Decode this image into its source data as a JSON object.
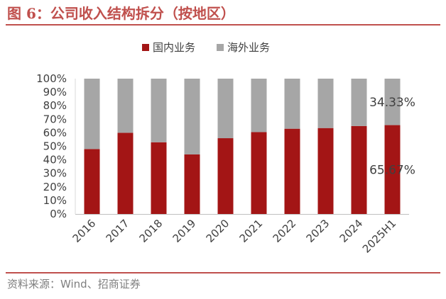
{
  "figure": {
    "title": "图 6：公司收入结构拆分（按地区）",
    "source": "资料来源：Wind、招商证券"
  },
  "chart_data": {
    "type": "bar",
    "stacked": true,
    "percent": true,
    "categories": [
      "2016",
      "2017",
      "2018",
      "2019",
      "2020",
      "2021",
      "2022",
      "2023",
      "2024",
      "2025H1"
    ],
    "series": [
      {
        "name": "国内业务",
        "color": "#A31515",
        "values": [
          48,
          60,
          53,
          44,
          56,
          60.5,
          63,
          63.5,
          65,
          65.67
        ]
      },
      {
        "name": "海外业务",
        "color": "#A6A6A6",
        "values": [
          52,
          40,
          47,
          56,
          44,
          39.5,
          37,
          36.5,
          35,
          34.33
        ]
      }
    ],
    "yticks": [
      "0%",
      "10%",
      "20%",
      "30%",
      "40%",
      "50%",
      "60%",
      "70%",
      "80%",
      "90%",
      "100%"
    ],
    "ylim": [
      0,
      100
    ],
    "legend": "top-center",
    "grid": false,
    "annotations": [
      {
        "category": "2025H1",
        "series": "海外业务",
        "text": "34.33%"
      },
      {
        "category": "2025H1",
        "series": "国内业务",
        "text": "65.67%"
      }
    ]
  }
}
